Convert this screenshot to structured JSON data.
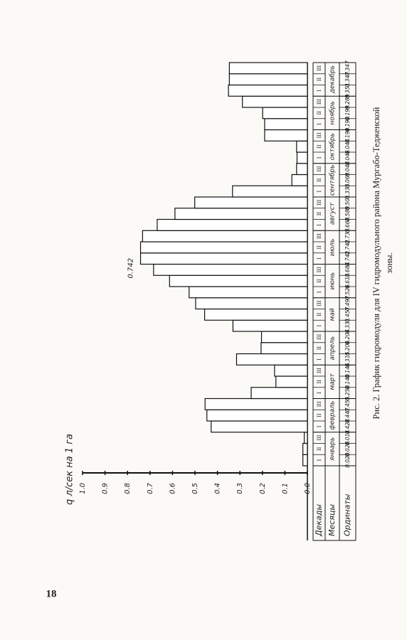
{
  "page_number": "18",
  "chart_data": {
    "type": "bar",
    "y_label": "q л/сек на 1 га",
    "row_headers": [
      "Декады",
      "Месяцы",
      "Ординаты"
    ],
    "months": [
      "январь",
      "февраль",
      "март",
      "апрель",
      "май",
      "июнь",
      "июль",
      "август",
      "сентябрь",
      "октябрь",
      "ноябрь",
      "декабрь"
    ],
    "categories": [
      "I",
      "II",
      "III",
      "I",
      "II",
      "III",
      "I",
      "II",
      "III",
      "I",
      "II",
      "III",
      "I",
      "II",
      "III",
      "I",
      "II",
      "III",
      "I",
      "II",
      "III",
      "I",
      "II",
      "III",
      "I",
      "II",
      "III",
      "I",
      "II",
      "III",
      "I",
      "II",
      "III",
      "I",
      "II",
      "III"
    ],
    "values": [
      0.02,
      0.02,
      0.014,
      0.428,
      0.447,
      0.455,
      0.25,
      0.14,
      0.146,
      0.315,
      0.206,
      0.204,
      0.331,
      0.457,
      0.497,
      0.526,
      0.613,
      0.684,
      0.742,
      0.742,
      0.733,
      0.668,
      0.589,
      0.501,
      0.333,
      0.069,
      0.048,
      0.046,
      0.048,
      0.19,
      0.19,
      0.199,
      0.289,
      0.351,
      0.347,
      0.347
    ],
    "value_labels": [
      "0.020",
      "0.020",
      "0.014",
      "0.428",
      "0.447",
      "0.455",
      "0.250",
      "0.140",
      "0.146",
      "0.315",
      "0.206",
      "0.204",
      "0.331",
      "0.457",
      "0.497",
      "0.526",
      "0.613",
      "0.684",
      "0.742",
      "0.742",
      "0.733",
      "0.668",
      "0.589",
      "0.501",
      "0.333",
      "0.069",
      "0.048",
      "0.046",
      "0.048",
      "0.190",
      "0.190",
      "0.199",
      "0.289",
      "0.351",
      "0.347",
      "0.347"
    ],
    "annotation": "0.742",
    "color": "#ffffff",
    "ylim": [
      0,
      1
    ],
    "yticks": [
      {
        "value": 0,
        "label": "0.0"
      },
      0.1,
      0.2,
      0.3,
      0.4,
      0.5,
      0.6,
      0.7,
      0.8,
      0.9,
      {
        "value": 1,
        "label": "1.0"
      }
    ],
    "caption": [
      "Рис. 2. График гидромодуля для IV гидромодульного района Мургабо-Тедженской",
      "зоны."
    ]
  }
}
